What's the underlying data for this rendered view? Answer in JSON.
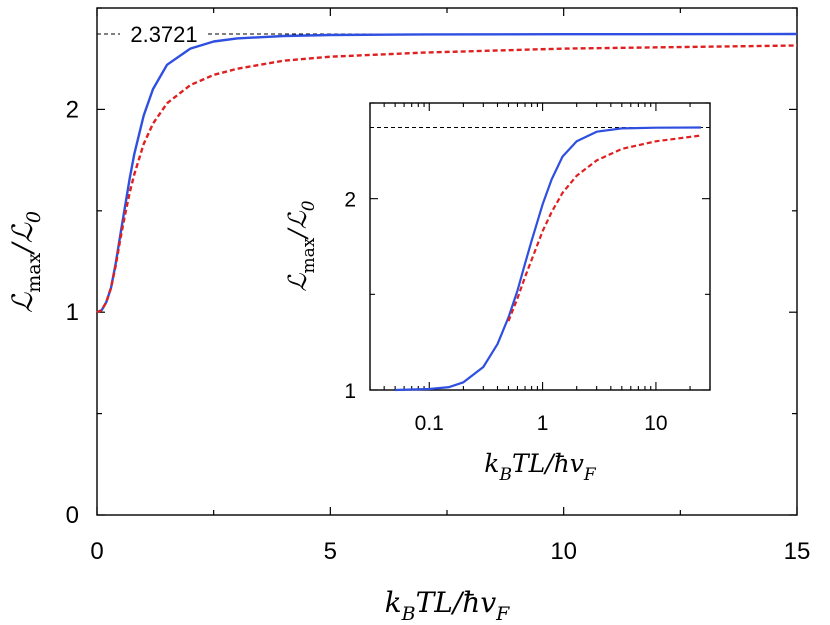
{
  "chart_data": [
    {
      "name": "main",
      "type": "line",
      "xlabel": "k_BTL/ħv_F",
      "ylabel": "ℒ_max/ℒ_0",
      "xlim": [
        0,
        15
      ],
      "ylim": [
        0,
        2.5
      ],
      "x_ticks": [
        0,
        5,
        10,
        15
      ],
      "y_ticks": [
        0,
        1,
        2
      ],
      "reference_line": {
        "y": 2.3721,
        "label": "2.3721",
        "style": "dashed",
        "color": "#000000"
      },
      "series": [
        {
          "color": "#2f4fe0",
          "style": "solid",
          "x": [
            0,
            0.1,
            0.2,
            0.3,
            0.4,
            0.5,
            0.6,
            0.7,
            0.8,
            1.0,
            1.2,
            1.5,
            2.0,
            2.5,
            3,
            4,
            5,
            7,
            10,
            15
          ],
          "y": [
            1.0,
            1.01,
            1.05,
            1.12,
            1.24,
            1.38,
            1.52,
            1.66,
            1.78,
            1.97,
            2.1,
            2.22,
            2.3,
            2.335,
            2.35,
            2.362,
            2.367,
            2.37,
            2.371,
            2.372
          ]
        },
        {
          "color": "#e02020",
          "style": "dashed",
          "x": [
            0,
            0.1,
            0.2,
            0.3,
            0.4,
            0.5,
            0.6,
            0.7,
            0.8,
            1.0,
            1.2,
            1.5,
            2.0,
            2.5,
            3,
            4,
            5,
            7,
            10,
            15
          ],
          "y": [
            1.0,
            1.01,
            1.05,
            1.12,
            1.23,
            1.36,
            1.48,
            1.59,
            1.68,
            1.83,
            1.93,
            2.03,
            2.12,
            2.17,
            2.2,
            2.24,
            2.26,
            2.28,
            2.3,
            2.315
          ]
        }
      ]
    },
    {
      "name": "inset",
      "type": "line",
      "xscale": "log",
      "xlabel": "k_BTL/ħv_F",
      "ylabel": "ℒ_max/ℒ_0",
      "xlim": [
        0.03,
        30
      ],
      "ylim": [
        1,
        2.5
      ],
      "x_ticks": [
        0.1,
        1,
        10
      ],
      "x_tick_labels": [
        "0.1",
        "1",
        "10"
      ],
      "y_ticks": [
        1,
        2
      ],
      "reference_line": {
        "y": 2.3721,
        "style": "dashed",
        "color": "#000000"
      },
      "series": [
        {
          "color": "#2f4fe0",
          "style": "solid",
          "x": [
            0.05,
            0.1,
            0.15,
            0.2,
            0.3,
            0.4,
            0.5,
            0.6,
            0.7,
            0.8,
            1.0,
            1.2,
            1.5,
            2,
            3,
            5,
            10,
            25
          ],
          "y": [
            1.0,
            1.005,
            1.015,
            1.04,
            1.12,
            1.24,
            1.38,
            1.52,
            1.66,
            1.78,
            1.97,
            2.1,
            2.22,
            2.3,
            2.35,
            2.367,
            2.371,
            2.372
          ]
        },
        {
          "color": "#e02020",
          "style": "dashed",
          "x": [
            0.5,
            0.6,
            0.7,
            0.8,
            1.0,
            1.2,
            1.5,
            2,
            3,
            5,
            10,
            25
          ],
          "y": [
            1.36,
            1.48,
            1.59,
            1.68,
            1.83,
            1.93,
            2.03,
            2.12,
            2.2,
            2.26,
            2.3,
            2.33
          ]
        }
      ]
    }
  ]
}
